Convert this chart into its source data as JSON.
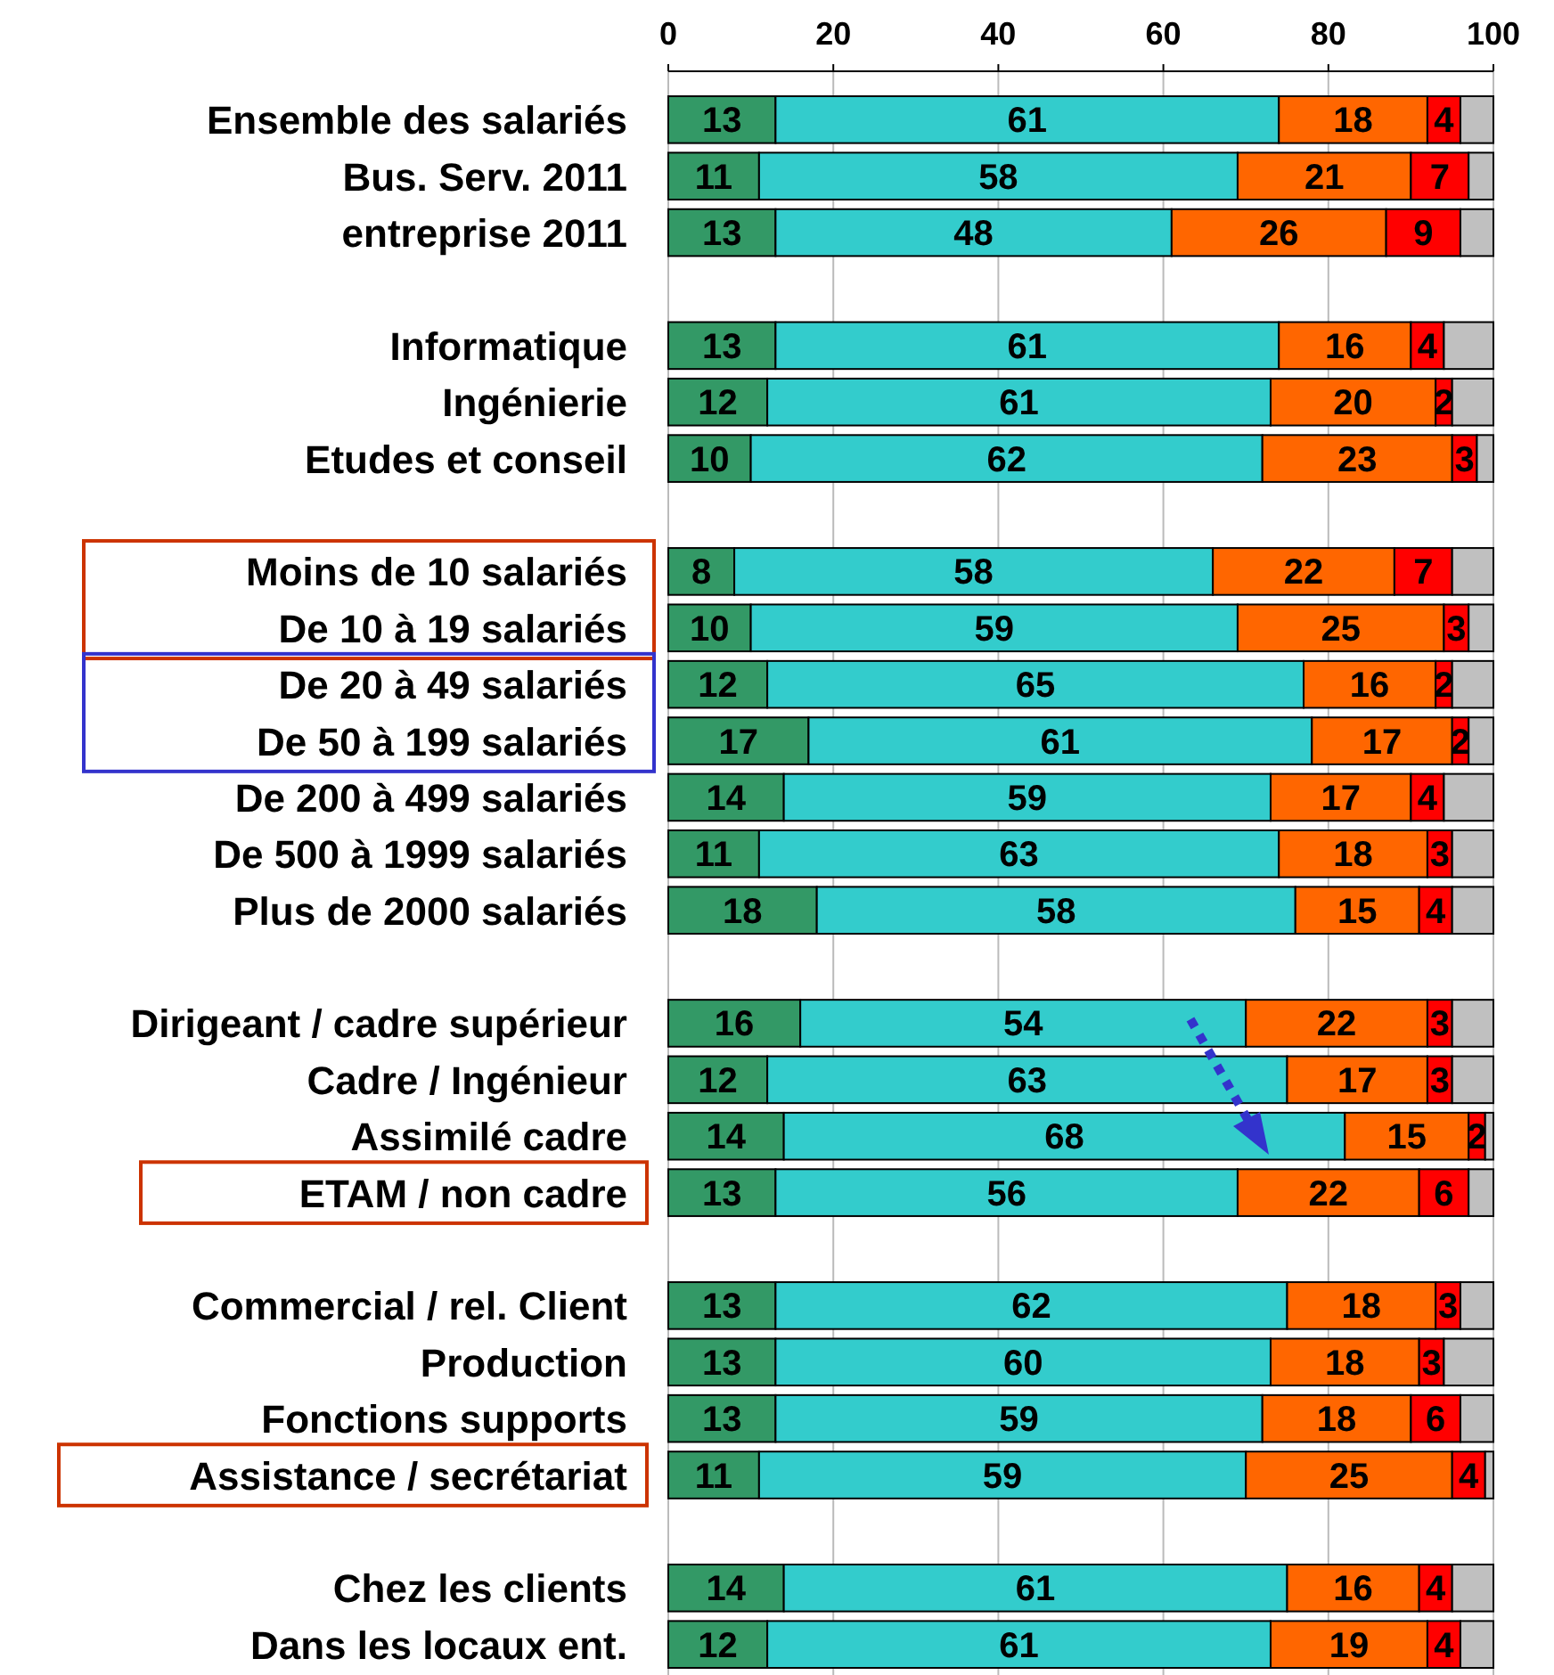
{
  "chart_data": {
    "type": "bar",
    "orientation": "horizontal",
    "stacked": true,
    "categories": [
      "Ensemble des salariés",
      "Bus. Serv. 2011",
      "entreprise 2011",
      null,
      "Informatique",
      "Ingénierie",
      "Etudes et conseil",
      null,
      "Moins de 10 salariés",
      "De 10 à 19 salariés",
      "De 20 à 49 salariés",
      "De 50 à 199 salariés",
      "De 200 à 499 salariés",
      "De 500 à 1999 salariés",
      "Plus de 2000 salariés",
      null,
      "Dirigeant / cadre supérieur",
      "Cadre / Ingénieur",
      "Assimilé cadre",
      "ETAM / non cadre",
      null,
      "Commercial / rel. Client",
      "Production",
      "Fonctions supports",
      "Assistance / secrétariat",
      null,
      "Chez les clients",
      "Dans les locaux ent."
    ],
    "series": [
      {
        "color": "#339966",
        "values": [
          13,
          11,
          13,
          null,
          13,
          12,
          10,
          null,
          8,
          10,
          12,
          17,
          14,
          11,
          18,
          null,
          16,
          12,
          14,
          13,
          null,
          13,
          13,
          13,
          11,
          null,
          14,
          12
        ],
        "value_labels": [
          "13",
          "11",
          "13",
          null,
          "13",
          "12",
          "10",
          null,
          "8",
          "10",
          "12",
          "17",
          "14",
          "11",
          "18",
          null,
          "16",
          "12",
          "14",
          "13",
          null,
          "13",
          "13",
          "13",
          "11",
          null,
          "14",
          "12"
        ]
      },
      {
        "color": "#33cccc",
        "values": [
          61,
          58,
          48,
          null,
          61,
          61,
          62,
          null,
          58,
          59,
          65,
          61,
          59,
          63,
          58,
          null,
          54,
          63,
          68,
          56,
          null,
          62,
          60,
          59,
          59,
          null,
          61,
          61
        ],
        "value_labels": [
          "61",
          "58",
          "48",
          null,
          "61",
          "61",
          "62",
          null,
          "58",
          "59",
          "65",
          "61",
          "59",
          "63",
          "58",
          null,
          "54",
          "63",
          "68",
          "56",
          null,
          "62",
          "60",
          "59",
          "59",
          null,
          "61",
          "61"
        ]
      },
      {
        "color": "#ff6600",
        "values": [
          18,
          21,
          26,
          null,
          16,
          20,
          23,
          null,
          22,
          25,
          16,
          17,
          17,
          18,
          15,
          null,
          22,
          17,
          15,
          22,
          null,
          18,
          18,
          18,
          25,
          null,
          16,
          19
        ],
        "value_labels": [
          "18",
          "21",
          "26",
          null,
          "16",
          "20",
          "23",
          null,
          "22",
          "25",
          "16",
          "17",
          "17",
          "18",
          "15",
          null,
          "22",
          "17",
          "15",
          "22",
          null,
          "18",
          "18",
          "18",
          "25",
          null,
          "16",
          "19"
        ]
      },
      {
        "color": "#ff0000",
        "values": [
          4,
          7,
          9,
          null,
          4,
          2,
          3,
          null,
          7,
          3,
          2,
          2,
          4,
          3,
          4,
          null,
          3,
          3,
          2,
          6,
          null,
          3,
          3,
          6,
          4,
          null,
          4,
          4
        ],
        "value_labels": [
          "4",
          "7",
          "9",
          null,
          "4",
          "2",
          "3",
          null,
          "7",
          "3",
          "2",
          "2",
          "4",
          "3",
          "4",
          null,
          "3",
          "3",
          "2",
          "6",
          null,
          "3",
          "3",
          "6",
          "4",
          null,
          "4",
          "4"
        ]
      },
      {
        "color": "#c0c0c0",
        "values": [
          4,
          3,
          4,
          null,
          6,
          5,
          2,
          null,
          5,
          3,
          5,
          3,
          6,
          5,
          5,
          null,
          5,
          5,
          1,
          3,
          null,
          4,
          6,
          4,
          1,
          null,
          5,
          4
        ]
      }
    ],
    "xlim": [
      0,
      100
    ],
    "xticks": [
      0,
      20,
      40,
      60,
      80,
      100
    ],
    "grid": "x"
  }
}
